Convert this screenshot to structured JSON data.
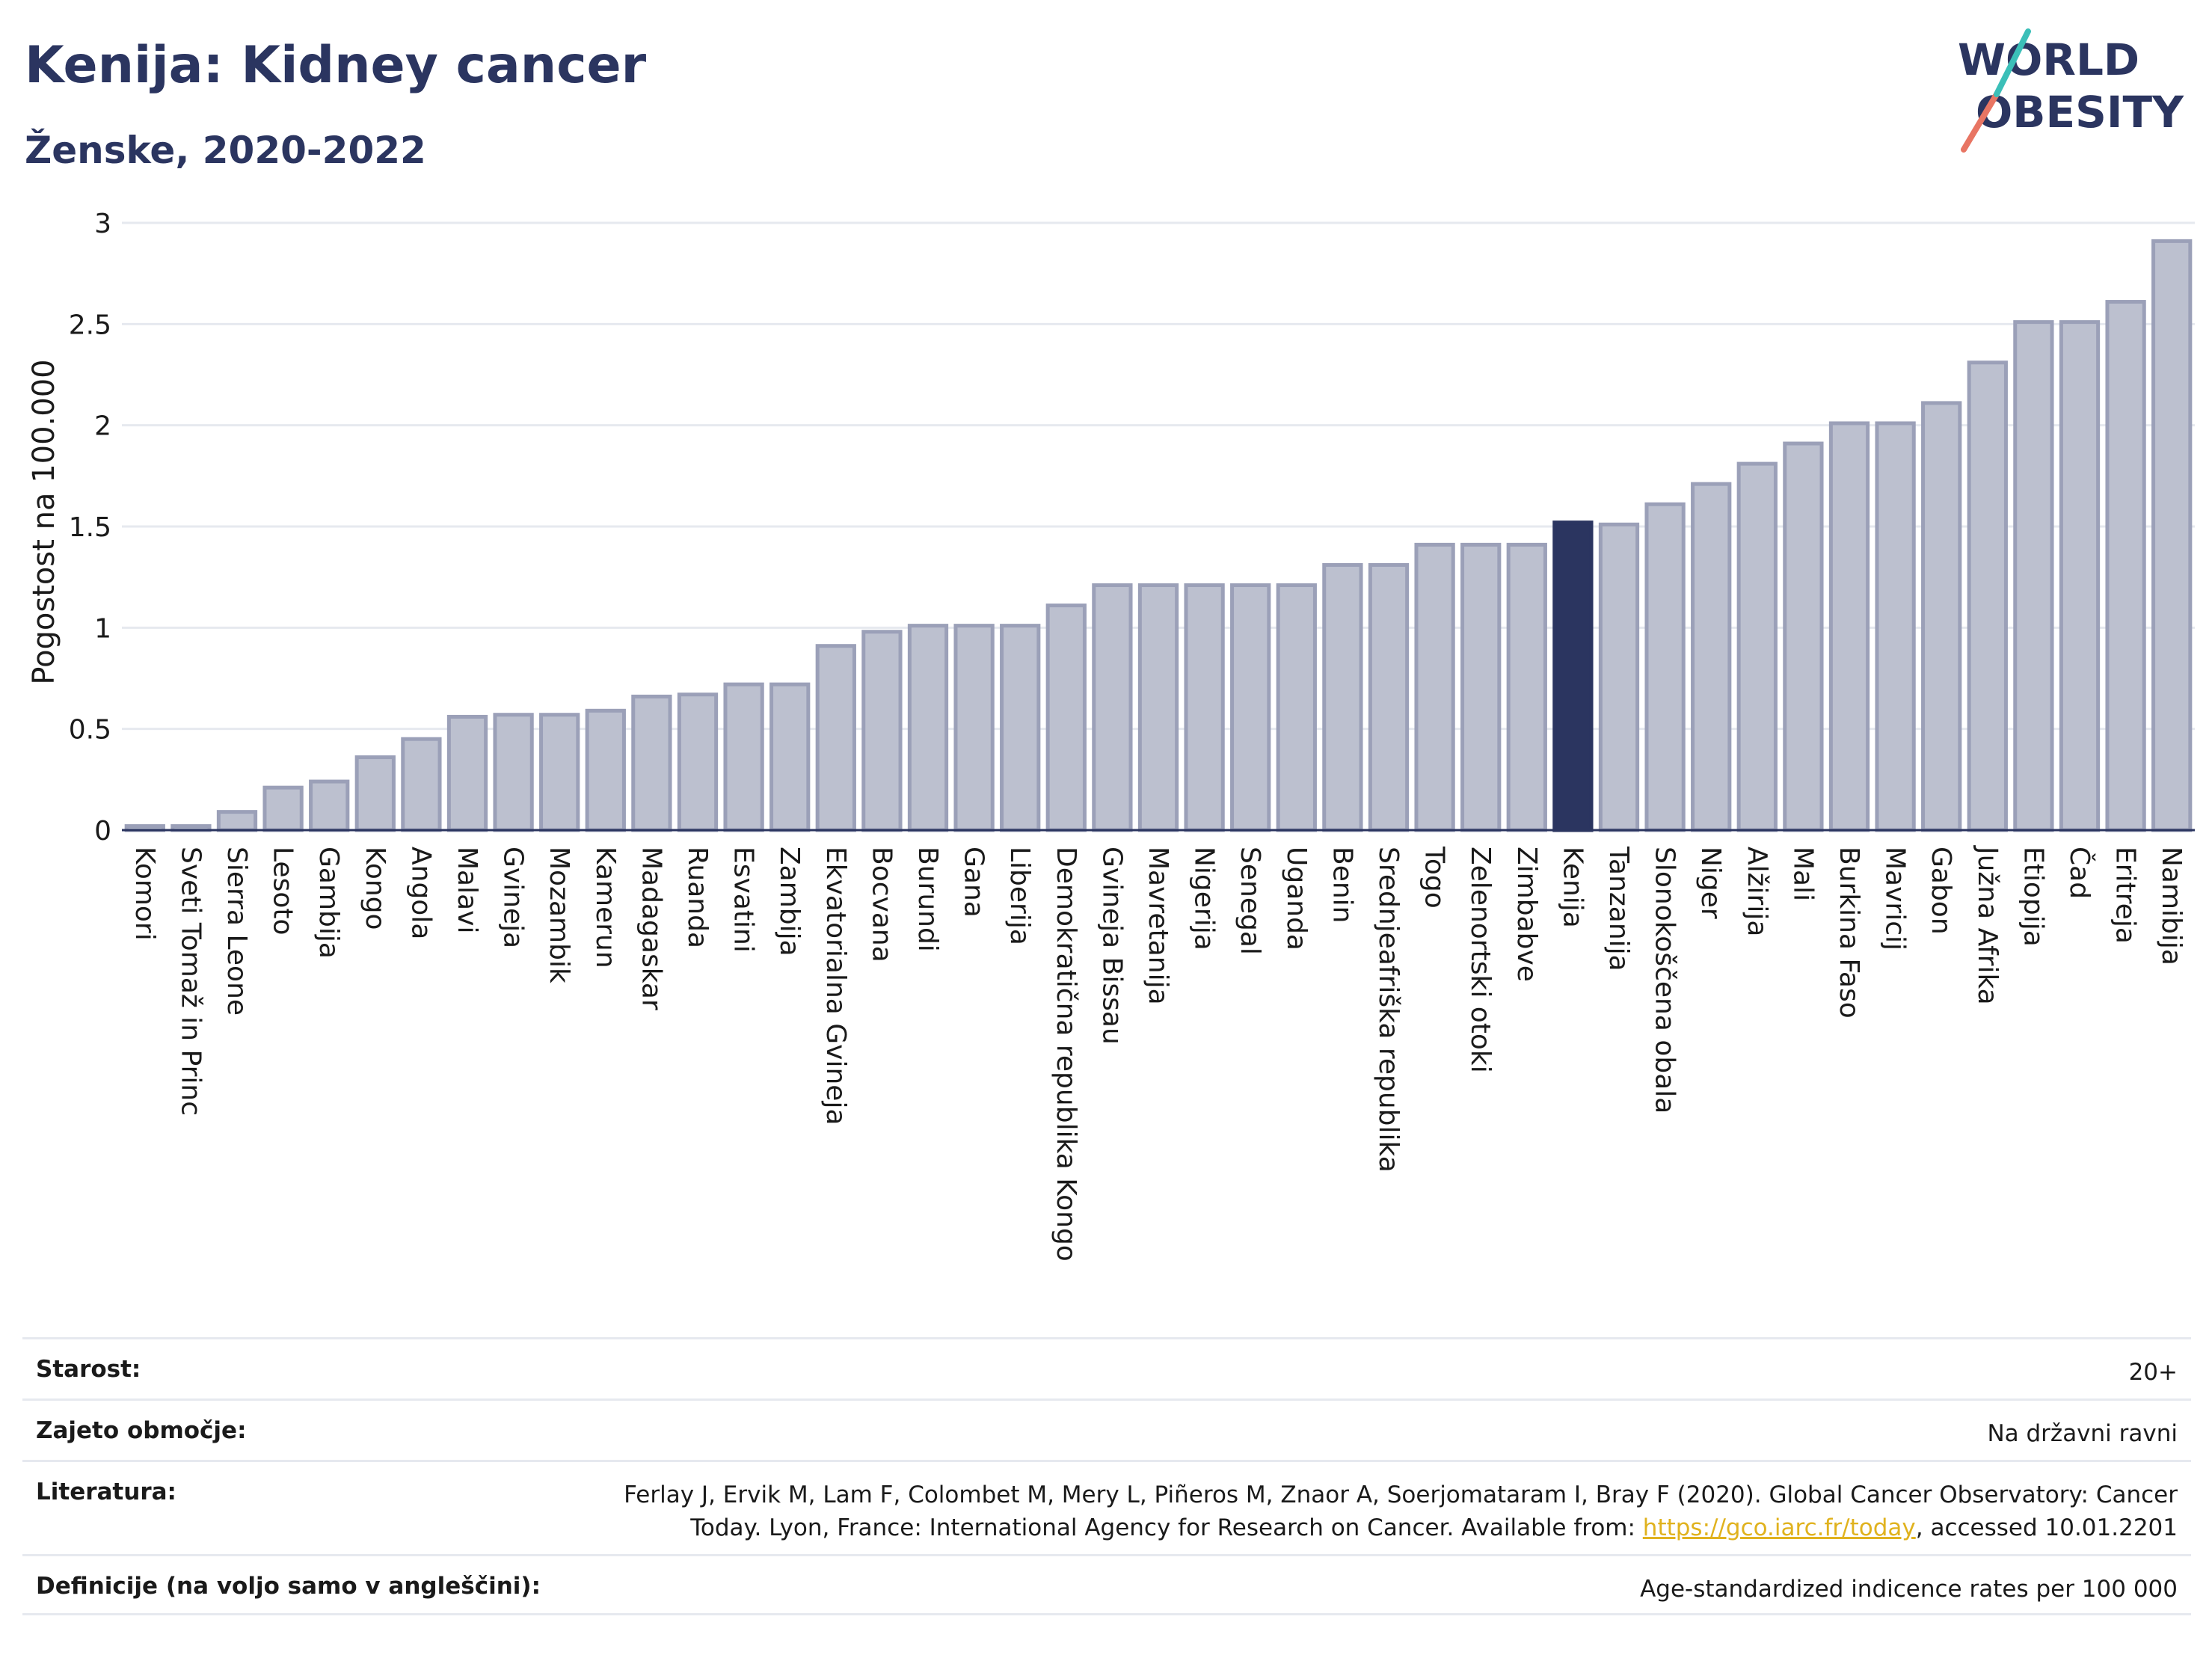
{
  "header": {
    "title": "Kenija: Kidney cancer",
    "subtitle": "Ženske, 2020-2022"
  },
  "logo": {
    "line1": "WORLD",
    "line2": "OBESITY"
  },
  "colors": {
    "bar": "#bcc0cf",
    "bar_edge": "#9ba0b8",
    "highlight": "#2b3560",
    "grid": "#e6e9ef"
  },
  "chart_data": {
    "type": "bar",
    "ylabel": "Pogostost na 100.000",
    "xlabel": "",
    "ylim": [
      0,
      3
    ],
    "yticks": [
      "0",
      "0.5",
      "1",
      "1.5",
      "2",
      "2.5",
      "3"
    ],
    "ytick_values": [
      0,
      0.5,
      1,
      1.5,
      2,
      2.5,
      3
    ],
    "grid": true,
    "highlight": "Kenija",
    "categories": [
      "Komori",
      "Sveti Tomaž in Princ",
      "Sierra Leone",
      "Lesoto",
      "Gambija",
      "Kongo",
      "Angola",
      "Malavi",
      "Gvineja",
      "Mozambik",
      "Kamerun",
      "Madagaskar",
      "Ruanda",
      "Esvatini",
      "Zambija",
      "Ekvatorialna Gvineja",
      "Bocvana",
      "Burundi",
      "Gana",
      "Liberija",
      "Demokratična republika Kongo",
      "Gvineja Bissau",
      "Mavretanija",
      "Nigerija",
      "Senegal",
      "Uganda",
      "Benin",
      "Srednjeafriška republika",
      "Togo",
      "Zelenortski otoki",
      "Zimbabve",
      "Kenija",
      "Tanzanija",
      "Slonokoščena obala",
      "Niger",
      "Alžirija",
      "Mali",
      "Burkina Faso",
      "Mavricij",
      "Gabon",
      "Južna Afrika",
      "Etiopija",
      "Čad",
      "Eritreja",
      "Namibija"
    ],
    "values": [
      0.02,
      0.02,
      0.09,
      0.21,
      0.24,
      0.36,
      0.45,
      0.56,
      0.57,
      0.57,
      0.59,
      0.66,
      0.67,
      0.72,
      0.72,
      0.91,
      0.98,
      1.01,
      1.01,
      1.01,
      1.11,
      1.21,
      1.21,
      1.21,
      1.21,
      1.21,
      1.31,
      1.31,
      1.41,
      1.41,
      1.41,
      1.52,
      1.51,
      1.61,
      1.71,
      1.81,
      1.91,
      2.01,
      2.01,
      2.11,
      2.31,
      2.51,
      2.51,
      2.61,
      2.91
    ]
  },
  "info": {
    "age_label": "Starost:",
    "age_value": "20+",
    "coverage_label": "Zajeto območje:",
    "coverage_value": "Na državni ravni",
    "literature_label": "Literatura:",
    "literature_line1": "Ferlay J, Ervik M, Lam F, Colombet M, Mery L, Piñeros M, Znaor A, Soerjomataram I, Bray F (2020). Global Cancer Observatory: Cancer",
    "literature_line2_before": "Today. Lyon, France: International Agency for Research on Cancer. Available from: ",
    "literature_link": "https://gco.iarc.fr/today",
    "literature_line2_after": ", accessed 10.01.2201",
    "definitions_label": "Definicije (na voljo samo v angleščini):",
    "definitions_value": "Age-standardized indicence rates per 100 000"
  }
}
